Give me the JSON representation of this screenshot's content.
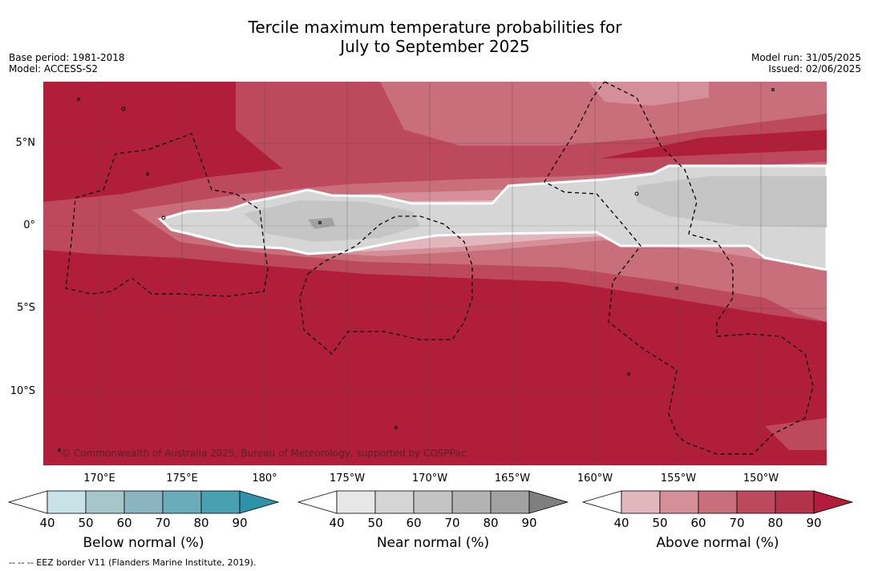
{
  "title_line1": "Tercile maximum temperature probabilities for",
  "title_line2": "July to September 2025",
  "meta_left": {
    "base_period": "Base period: 1981-2018",
    "model": "Model: ACCESS-S2"
  },
  "meta_right": {
    "model_run": "Model run: 31/05/2025",
    "issued": "Issued: 02/06/2025"
  },
  "lat_labels": [
    "5°N",
    "0°",
    "5°S",
    "10°S"
  ],
  "lon_labels": [
    "170°E",
    "175°E",
    "180°",
    "175°W",
    "170°W",
    "165°W",
    "160°W",
    "155°W",
    "150°W"
  ],
  "copyright": "© Commonwealth of Australia 2025, Bureau of Meteorology, supported by COSPPac",
  "colorbars": [
    {
      "title": "Below normal (%)",
      "ticks": [
        "40",
        "50",
        "60",
        "70",
        "80",
        "90"
      ],
      "colors": [
        "#c9e2e7",
        "#a7c6cc",
        "#8ab5c0",
        "#6aacba",
        "#48a0b0",
        "#2e93a8"
      ]
    },
    {
      "title": "Near normal (%)",
      "ticks": [
        "40",
        "50",
        "60",
        "70",
        "80",
        "90"
      ],
      "colors": [
        "#e7e7e7",
        "#d5d5d5",
        "#c4c4c4",
        "#b3b3b3",
        "#a2a2a2",
        "#7f7f7f"
      ]
    },
    {
      "title": "Above normal (%)",
      "ticks": [
        "40",
        "50",
        "60",
        "70",
        "80",
        "90"
      ],
      "colors": [
        "#e1b6bd",
        "#d58f99",
        "#c96f7c",
        "#bd4a5c",
        "#b3344a",
        "#b11d3b"
      ]
    }
  ],
  "footnote": "--  --  -- EEZ border V11 (Flanders Marine Institute, 2019).",
  "colors": {
    "dominant_above": "#b11e3a",
    "near_normal_light": "#d6d6d6",
    "near_normal_mid": "#c5c5c5"
  }
}
